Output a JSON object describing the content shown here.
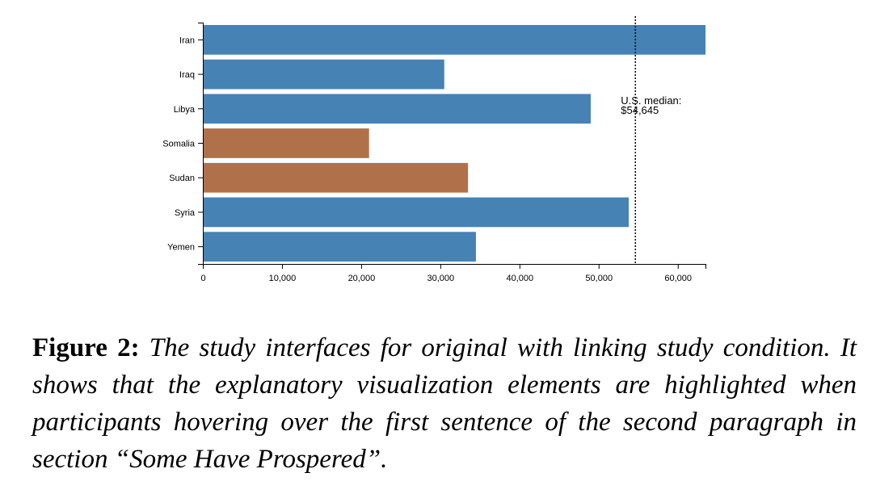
{
  "chart_data": {
    "type": "bar",
    "orientation": "horizontal",
    "categories": [
      "Iran",
      "Iraq",
      "Libya",
      "Somalia",
      "Sudan",
      "Syria",
      "Yemen"
    ],
    "values": [
      63500,
      30500,
      49000,
      21000,
      33500,
      53800,
      34500
    ],
    "highlighted": [
      false,
      false,
      false,
      true,
      true,
      false,
      false
    ],
    "colors": {
      "default": "#4682b4",
      "highlight": "#b0714a"
    },
    "xlim": [
      0,
      63500
    ],
    "xticks": [
      0,
      10000,
      20000,
      30000,
      40000,
      50000,
      60000
    ],
    "xtick_labels": [
      "0",
      "10,000",
      "20,000",
      "30,000",
      "40,000",
      "50,000",
      "60,000"
    ],
    "reference_line": {
      "value": 54645,
      "style": "dotted",
      "label_line1": "U.S. median:",
      "label_line2": "$54,645"
    },
    "grid": false
  },
  "caption": {
    "label": "Figure 2:",
    "text": "The study interfaces for original with linking study condition. It shows that the explanatory visualization elements are highlighted when participants hovering over the first sentence of the second paragraph in section “Some Have Prospered”."
  }
}
